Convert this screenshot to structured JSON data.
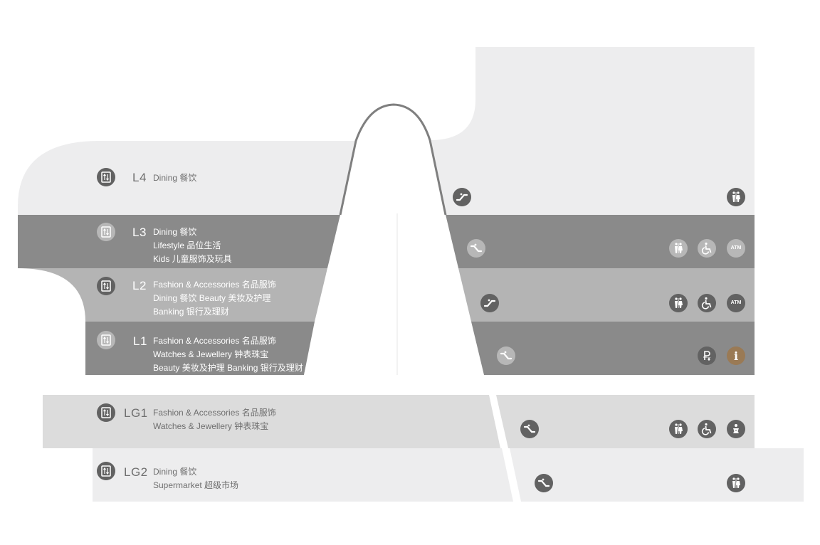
{
  "floors": [
    {
      "code": "L4",
      "lines": [
        "Dining 餐饮"
      ]
    },
    {
      "code": "L3",
      "lines": [
        "Dining 餐饮",
        "Lifestyle 品位生活",
        "Kids 儿童服饰及玩具"
      ]
    },
    {
      "code": "L2",
      "lines": [
        "Fashion & Accessories 名品服饰",
        "Dining 餐饮  Beauty 美妆及护理",
        "Banking 银行及理财"
      ]
    },
    {
      "code": "L1",
      "lines": [
        "Fashion & Accessories 名品服饰",
        "Watches & Jewellery 钟表珠宝",
        "Beauty 美妆及护理  Banking 银行及理财"
      ]
    },
    {
      "code": "LG1",
      "lines": [
        "Fashion & Accessories 名品服饰",
        "Watches & Jewellery 钟表珠宝"
      ]
    },
    {
      "code": "LG2",
      "lines": [
        "Dining 餐饮",
        "Supermarket 超级市场"
      ]
    }
  ],
  "icons": {
    "elevator": "elevator-icon",
    "escalator": "escalator-icon",
    "restroom": "restroom-icon",
    "accessible": "accessible-icon",
    "atm": "atm-icon",
    "currency": "currency-exchange-icon",
    "info": "info-icon",
    "baby": "baby-care-icon",
    "atm_label": "ATM",
    "info_label": "i"
  },
  "colors": {
    "band_light": "#ededee",
    "band_dark": "#8a8a8a",
    "band_mid": "#b4b4b4",
    "band_lg1": "#dcdcdc",
    "icon_dark": "#626262",
    "icon_light": "#b7b7b7",
    "info_brown": "#9a7a55",
    "arch_stroke": "#7f7f7f"
  }
}
